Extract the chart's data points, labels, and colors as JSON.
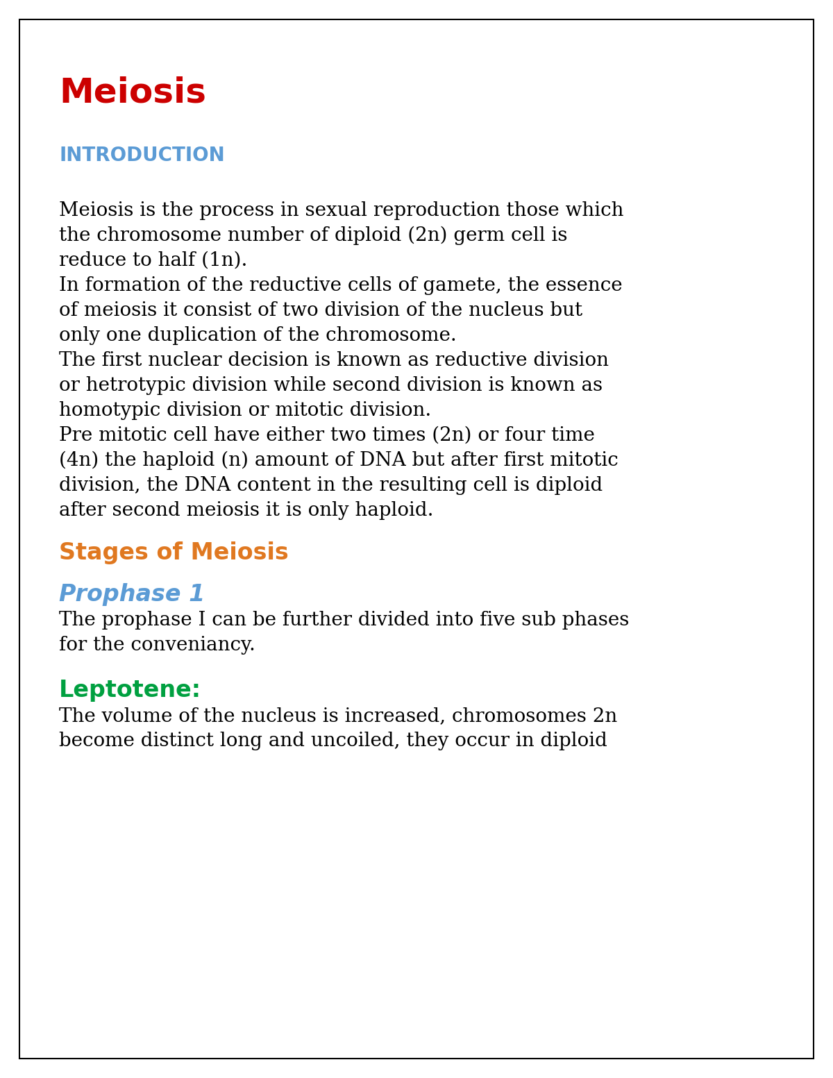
{
  "bg_color": "#ffffff",
  "border_color": "#000000",
  "title": "Meiosis",
  "title_color": "#cc0000",
  "title_fontsize": 36,
  "section1_label": "INTRODUCTION",
  "section1_color": "#5b9bd5",
  "section1_fontsize": 20,
  "body_color": "#000000",
  "body_fontsize": 20,
  "section2_label": "Stages of Meiosis",
  "section2_color": "#e07820",
  "section2_fontsize": 24,
  "prophase_label": "Prophase 1",
  "prophase_color": "#5b9bd5",
  "prophase_fontsize": 24,
  "leptotene_label": "Leptotene:",
  "leptotene_color": "#00a040",
  "leptotene_fontsize": 24,
  "lines_p1": [
    "Meiosis is the process in sexual reproduction those which",
    "the chromosome number of diploid (2n) germ cell is",
    "reduce to half (1n)."
  ],
  "lines_p2": [
    "In formation of the reductive cells of gamete, the essence",
    "of meiosis it consist of two division of the nucleus but",
    "only one duplication of the chromosome."
  ],
  "lines_p3": [
    "The first nuclear decision is known as reductive division",
    "or hetrotypic division while second division is known as",
    "homotypic division or mitotic division."
  ],
  "lines_p4": [
    "Pre mitotic cell have either two times (2n) or four time",
    "(4n) the haploid (n) amount of DNA but after first mitotic",
    "division, the DNA content in the resulting cell is diploid",
    "after second meiosis it is only haploid."
  ],
  "lines_prophase": [
    "The prophase I can be further divided into five sub phases",
    "for the conveniancy."
  ],
  "lines_leptotene": [
    "The volume of the nucleus is increased, chromosomes 2n",
    "become distinct long and uncoiled, they occur in diploid"
  ]
}
